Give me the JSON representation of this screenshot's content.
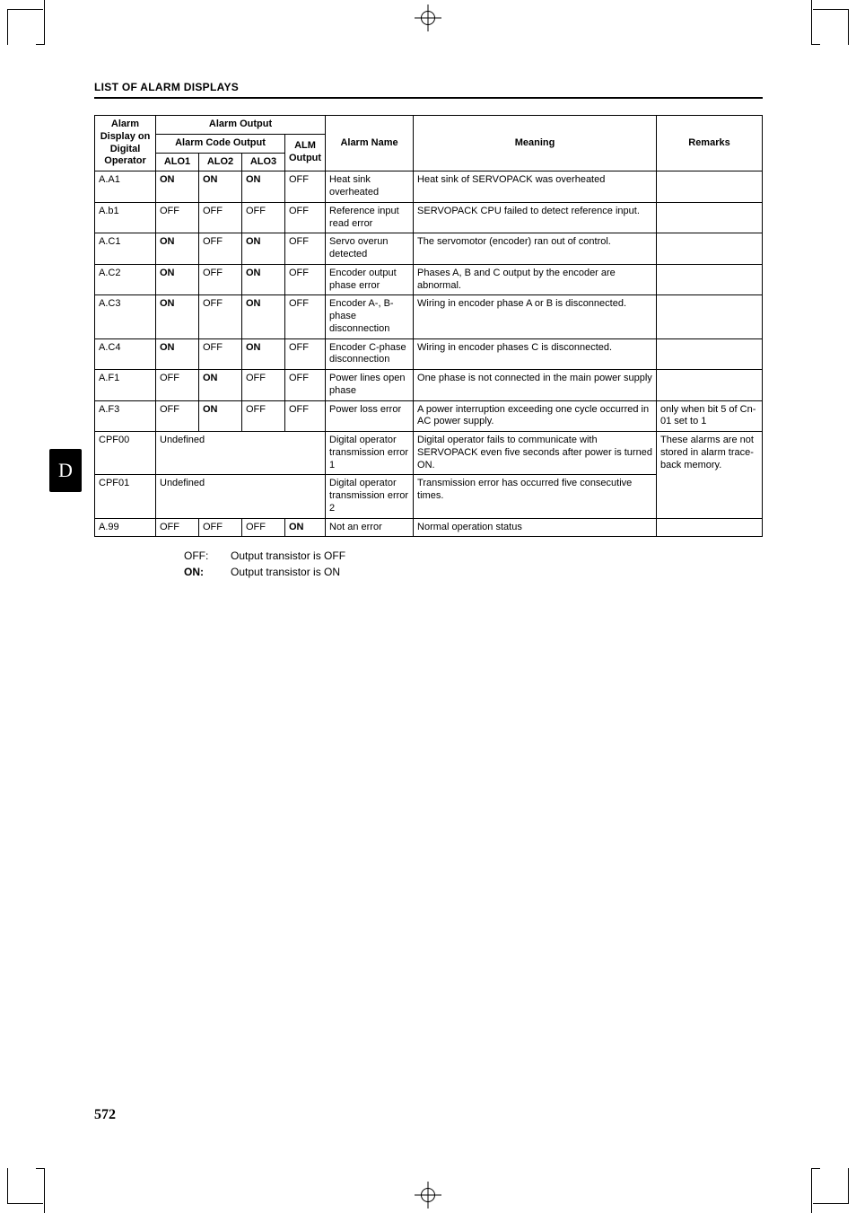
{
  "header": "LIST OF ALARM DISPLAYS",
  "side_tab": "D",
  "page_number": "572",
  "table": {
    "head": {
      "alarm_display": "Alarm Display on Digital Operator",
      "alarm_output": "Alarm Output",
      "alarm_code_output": "Alarm Code Output",
      "alm_output": "ALM Output",
      "alo1": "ALO1",
      "alo2": "ALO2",
      "alo3": "ALO3",
      "alarm_name": "Alarm Name",
      "meaning": "Meaning",
      "remarks": "Remarks"
    },
    "rows": [
      {
        "code": "A.A1",
        "alo1": "ON",
        "b1": true,
        "alo2": "ON",
        "b2": true,
        "alo3": "ON",
        "b3": true,
        "alm": "OFF",
        "name": "Heat sink overheated",
        "meaning": "Heat sink of SERVOPACK was overheated",
        "remarks": ""
      },
      {
        "code": "A.b1",
        "alo1": "OFF",
        "b1": false,
        "alo2": "OFF",
        "b2": false,
        "alo3": "OFF",
        "b3": false,
        "alm": "OFF",
        "name": "Reference input read error",
        "meaning": "SERVOPACK CPU failed to detect reference input.",
        "remarks": ""
      },
      {
        "code": "A.C1",
        "alo1": "ON",
        "b1": true,
        "alo2": "OFF",
        "b2": false,
        "alo3": "ON",
        "b3": true,
        "alm": "OFF",
        "name": "Servo overun detected",
        "meaning": "The servomotor (encoder) ran out of control.",
        "remarks": ""
      },
      {
        "code": "A.C2",
        "alo1": "ON",
        "b1": true,
        "alo2": "OFF",
        "b2": false,
        "alo3": "ON",
        "b3": true,
        "alm": "OFF",
        "name": "Encoder output phase error",
        "meaning": "Phases A, B and C output by the encoder are abnormal.",
        "remarks": ""
      },
      {
        "code": "A.C3",
        "alo1": "ON",
        "b1": true,
        "alo2": "OFF",
        "b2": false,
        "alo3": "ON",
        "b3": true,
        "alm": "OFF",
        "name": "Encoder A-, B-phase disconnection",
        "meaning": "Wiring in encoder phase A or B is disconnected.",
        "remarks": ""
      },
      {
        "code": "A.C4",
        "alo1": "ON",
        "b1": true,
        "alo2": "OFF",
        "b2": false,
        "alo3": "ON",
        "b3": true,
        "alm": "OFF",
        "name": "Encoder C-phase disconnection",
        "meaning": "Wiring in encoder phases C is disconnected.",
        "remarks": ""
      },
      {
        "code": "A.F1",
        "alo1": "OFF",
        "b1": false,
        "alo2": "ON",
        "b2": true,
        "alo3": "OFF",
        "b3": false,
        "alm": "OFF",
        "name": "Power lines open phase",
        "meaning": "One phase is not connected in the main power supply",
        "remarks": ""
      },
      {
        "code": "A.F3",
        "alo1": "OFF",
        "b1": false,
        "alo2": "ON",
        "b2": true,
        "alo3": "OFF",
        "b3": false,
        "alm": "OFF",
        "name": "Power loss error",
        "meaning": "A power interruption exceeding one cycle occurred in AC power supply.",
        "remarks": "only when bit 5 of Cn-01 set to 1"
      },
      {
        "code": "CPF00",
        "undefined": true,
        "undef_label": "Undefined",
        "name": "Digital operator transmission error 1",
        "meaning": "Digital operator fails to communicate with SERVOPACK even five seconds after power is turned ON.",
        "remarks": "These alarms are not stored in alarm trace-back memory.",
        "remspan": 2
      },
      {
        "code": "CPF01",
        "undefined": true,
        "undef_label": "Undefined",
        "name": "Digital operator transmission error 2",
        "meaning": "Transmission error has occurred five consecutive times.",
        "remarks": ""
      },
      {
        "code": "A.99",
        "alo1": "OFF",
        "b1": false,
        "alo2": "OFF",
        "b2": false,
        "alo3": "OFF",
        "b3": false,
        "alm": "ON",
        "balm": true,
        "name": "Not an error",
        "meaning": "Normal operation status",
        "remarks": ""
      }
    ]
  },
  "legend": {
    "off_key": "OFF:",
    "off_text": "Output transistor is OFF",
    "on_key": "ON:",
    "on_text": "Output transistor is ON"
  }
}
